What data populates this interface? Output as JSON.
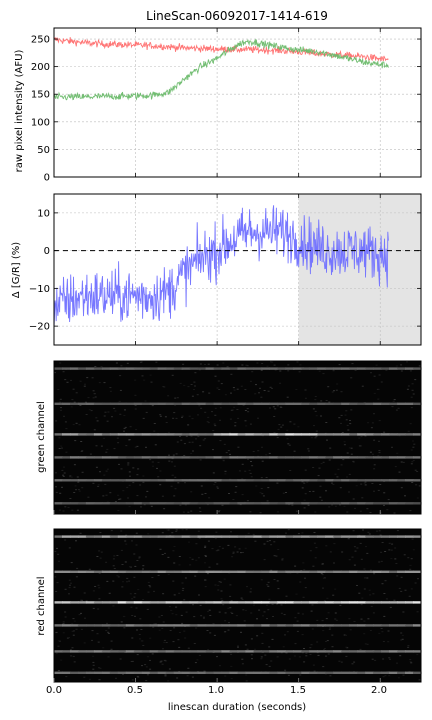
{
  "figure": {
    "title": "LineScan-06092017-1414-619",
    "xlabel": "linescan duration (seconds)",
    "x_ticks": [
      "0.0",
      "0.5",
      "1.0",
      "1.5",
      "2.0"
    ]
  },
  "chart_data": [
    {
      "type": "line",
      "title": "LineScan-06092017-1414-619",
      "xlabel": "",
      "ylabel": "raw pixel intensity (AFU)",
      "xlim": [
        0,
        2.25
      ],
      "ylim": [
        0,
        270
      ],
      "y_ticks": [
        0,
        50,
        100,
        150,
        200,
        250
      ],
      "grid": true,
      "colors": {
        "red": "#ff6e6e",
        "green": "#6cbb6c"
      },
      "series": [
        {
          "color": "red",
          "x": [
            0.0,
            0.1,
            0.2,
            0.3,
            0.4,
            0.5,
            0.6,
            0.7,
            0.8,
            0.9,
            1.0,
            1.1,
            1.2,
            1.3,
            1.4,
            1.5,
            1.6,
            1.7,
            1.8,
            1.9,
            2.0,
            2.05
          ],
          "y": [
            249,
            246,
            243,
            241,
            240,
            239,
            238,
            236,
            234,
            233,
            232,
            231,
            231,
            230,
            229,
            227,
            224,
            222,
            220,
            218,
            214,
            213
          ]
        },
        {
          "color": "green",
          "x": [
            0.0,
            0.1,
            0.2,
            0.3,
            0.4,
            0.5,
            0.6,
            0.7,
            0.75,
            0.8,
            0.9,
            1.0,
            1.05,
            1.1,
            1.15,
            1.2,
            1.3,
            1.4,
            1.5,
            1.6,
            1.7,
            1.8,
            1.9,
            2.0,
            2.05
          ],
          "y": [
            144,
            145,
            145,
            146,
            146,
            147,
            148,
            153,
            165,
            178,
            200,
            215,
            225,
            235,
            243,
            246,
            240,
            235,
            230,
            228,
            222,
            215,
            208,
            204,
            202
          ]
        }
      ]
    },
    {
      "type": "line",
      "xlabel": "",
      "ylabel": "Δ [G/R] (%)",
      "xlim": [
        0,
        2.25
      ],
      "ylim": [
        -25,
        15
      ],
      "y_ticks": [
        -20,
        -10,
        0,
        10
      ],
      "grid": true,
      "reference_line": {
        "y": 0,
        "style": "dashed",
        "color": "#000000"
      },
      "shaded_region": {
        "x": [
          1.5,
          2.25
        ],
        "color": "#e4e4e4"
      },
      "series": [
        {
          "color": "#7070ff",
          "x": [
            0.0,
            0.1,
            0.2,
            0.3,
            0.4,
            0.5,
            0.6,
            0.7,
            0.8,
            0.9,
            1.0,
            1.1,
            1.2,
            1.3,
            1.4,
            1.5,
            1.6,
            1.7,
            1.8,
            1.9,
            2.0,
            2.05
          ],
          "y": [
            -15,
            -13,
            -12,
            -12,
            -12,
            -12,
            -12,
            -11,
            -6,
            -2,
            0,
            3,
            5,
            5,
            5,
            3,
            1,
            0,
            0,
            0,
            -1,
            -1
          ]
        }
      ]
    },
    {
      "type": "heatmap",
      "ylabel": "green channel",
      "colormap": "gray",
      "xlim": [
        0,
        2.25
      ],
      "bright_rows": [
        {
          "row_fraction": 0.05,
          "level": 0.35
        },
        {
          "row_fraction": 0.28,
          "level": 0.35
        },
        {
          "row_fraction": 0.48,
          "level": 0.75
        },
        {
          "row_fraction": 0.63,
          "level": 0.4
        },
        {
          "row_fraction": 0.78,
          "level": 0.35
        },
        {
          "row_fraction": 0.93,
          "level": 0.3
        }
      ]
    },
    {
      "type": "heatmap",
      "ylabel": "red channel",
      "colormap": "gray",
      "xlim": [
        0,
        2.25
      ],
      "bright_rows": [
        {
          "row_fraction": 0.05,
          "level": 0.6
        },
        {
          "row_fraction": 0.28,
          "level": 0.5
        },
        {
          "row_fraction": 0.48,
          "level": 0.85
        },
        {
          "row_fraction": 0.63,
          "level": 0.45
        },
        {
          "row_fraction": 0.8,
          "level": 0.45
        },
        {
          "row_fraction": 0.94,
          "level": 0.4
        }
      ]
    }
  ]
}
